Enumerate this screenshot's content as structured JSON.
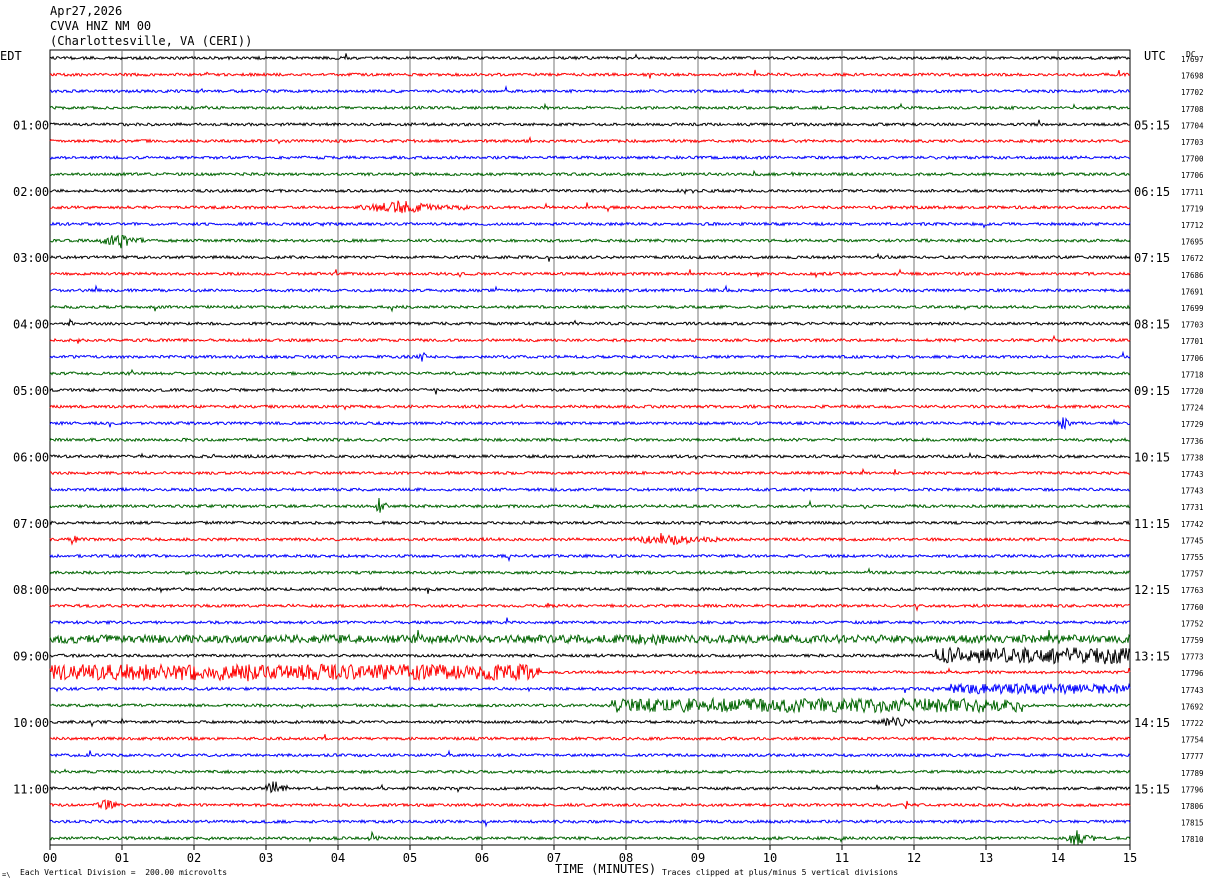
{
  "header": {
    "date": "Apr27,2026",
    "station": "CVVA HNZ NM 00",
    "location": "(Charlottesville, VA (CERI))"
  },
  "left_tz": "EDT",
  "right_tz": "UTC",
  "right_col_header": "DC",
  "footer": {
    "scale_note": "Each Vertical Division =  200.00 microvolts",
    "corner_mark": "=\\",
    "clip_note": "Traces clipped at plus/minus 5 vertical divisions"
  },
  "chart_data": {
    "type": "line",
    "title": "CVVA HNZ NM 00",
    "xlabel": "TIME (MINUTES)",
    "xlim": [
      0,
      15
    ],
    "x_ticks": [
      "00",
      "01",
      "02",
      "03",
      "04",
      "05",
      "06",
      "07",
      "08",
      "09",
      "10",
      "11",
      "12",
      "13",
      "14",
      "15"
    ],
    "vertical_division_microvolts": 200.0,
    "clip_divisions": 5,
    "trace_color_cycle": [
      "#000000",
      "#ff0000",
      "#0000ff",
      "#006400"
    ],
    "left_hour_labels": [
      "01:00",
      "02:00",
      "03:00",
      "04:00",
      "05:00",
      "06:00",
      "07:00",
      "08:00",
      "09:00",
      "10:00",
      "11:00"
    ],
    "right_hour_labels": [
      "05:15",
      "06:15",
      "07:15",
      "08:15",
      "09:15",
      "10:15",
      "11:15",
      "12:15",
      "13:15",
      "14:15",
      "15:15"
    ],
    "hour_label_every_traces": 4,
    "hour_label_first_trace": 4,
    "trace_dc_offsets": [
      17697,
      17698,
      17702,
      17708,
      17704,
      17703,
      17700,
      17706,
      17711,
      17719,
      17712,
      17695,
      17672,
      17686,
      17691,
      17699,
      17703,
      17701,
      17706,
      17718,
      17720,
      17724,
      17729,
      17736,
      17738,
      17743,
      17743,
      17731,
      17742,
      17745,
      17755,
      17757,
      17763,
      17760,
      17752,
      17759,
      17773,
      17796,
      17743,
      17692,
      17722,
      17754,
      17777,
      17789,
      17796,
      17806,
      17815,
      17810
    ],
    "events": [
      {
        "trace": 9,
        "start_min": 4.3,
        "end_min": 5.8,
        "amp": 7
      },
      {
        "trace": 11,
        "start_min": 0.7,
        "end_min": 1.4,
        "amp": 8
      },
      {
        "trace": 16,
        "start_min": 0.2,
        "end_min": 0.4,
        "amp": 4
      },
      {
        "trace": 18,
        "start_min": 5.1,
        "end_min": 5.3,
        "amp": 5
      },
      {
        "trace": 22,
        "start_min": 14.0,
        "end_min": 14.2,
        "amp": 7
      },
      {
        "trace": 27,
        "start_min": 4.5,
        "end_min": 4.7,
        "amp": 9
      },
      {
        "trace": 29,
        "start_min": 0.2,
        "end_min": 0.5,
        "amp": 5
      },
      {
        "trace": 29,
        "start_min": 8.1,
        "end_min": 9.3,
        "amp": 7
      },
      {
        "trace": 35,
        "start_min": 0.0,
        "end_min": 15.0,
        "amp": 4
      },
      {
        "trace": 35,
        "start_min": 7.8,
        "end_min": 9.2,
        "amp": 6
      },
      {
        "trace": 36,
        "start_min": 12.3,
        "end_min": 15.0,
        "amp": 8
      },
      {
        "trace": 37,
        "start_min": 0.0,
        "end_min": 6.8,
        "amp": 8
      },
      {
        "trace": 38,
        "start_min": 12.5,
        "end_min": 15.0,
        "amp": 5
      },
      {
        "trace": 39,
        "start_min": 7.8,
        "end_min": 13.5,
        "amp": 7
      },
      {
        "trace": 40,
        "start_min": 11.5,
        "end_min": 12.1,
        "amp": 6
      },
      {
        "trace": 44,
        "start_min": 3.0,
        "end_min": 3.3,
        "amp": 9
      },
      {
        "trace": 45,
        "start_min": 0.6,
        "end_min": 1.1,
        "amp": 5
      },
      {
        "trace": 47,
        "start_min": 4.4,
        "end_min": 4.6,
        "amp": 6
      },
      {
        "trace": 47,
        "start_min": 14.1,
        "end_min": 14.5,
        "amp": 8
      }
    ]
  }
}
